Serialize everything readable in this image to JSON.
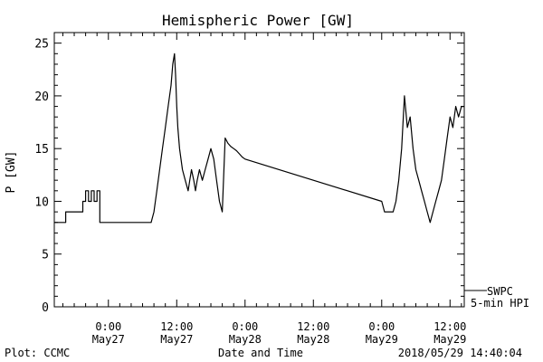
{
  "chart_data": {
    "type": "line",
    "title": "Hemispheric Power [GW]",
    "xlabel": "Date and Time",
    "ylabel": "P [GW]",
    "ylim": [
      0,
      26
    ],
    "xlim_hours": [
      -9.5,
      62.5
    ],
    "yticks": [
      0,
      5,
      10,
      15,
      20,
      25
    ],
    "x_ticks": [
      {
        "hour": 0,
        "time": "0:00",
        "date": "May27"
      },
      {
        "hour": 12,
        "time": "12:00",
        "date": "May27"
      },
      {
        "hour": 24,
        "time": "0:00",
        "date": "May28"
      },
      {
        "hour": 36,
        "time": "12:00",
        "date": "May28"
      },
      {
        "hour": 48,
        "time": "0:00",
        "date": "May29"
      },
      {
        "hour": 60,
        "time": "12:00",
        "date": "May29"
      }
    ],
    "grid": false,
    "legend_position": "bottom-right",
    "series": [
      {
        "name": "",
        "color": "#000000",
        "hours_since_may27_0000": [
          -9.5,
          -7.5,
          -7.5,
          -5,
          -5,
          -4.5,
          -4.5,
          -4,
          -4,
          -3.5,
          -3.5,
          -3,
          -3,
          -2.5,
          -2.5,
          -2,
          -2,
          -1.5,
          -1.5,
          -1.5,
          -1.5,
          1,
          1,
          3,
          3.5,
          4,
          4.5,
          5,
          5.5,
          6,
          6.5,
          7,
          7.5,
          8,
          8.5,
          9,
          9.5,
          10,
          10.5,
          11,
          11.3,
          11.6,
          11.8,
          12,
          12.2,
          12.5,
          13,
          13.5,
          14,
          14.3,
          14.6,
          15,
          15.3,
          15.6,
          16,
          16.5,
          17,
          17.5,
          18,
          18.5,
          19,
          19.5,
          20,
          20.5,
          21,
          21.5,
          22,
          22.5,
          23,
          23.5,
          24,
          48,
          48.5,
          49,
          49.5,
          50,
          50.5,
          51,
          51.5,
          52,
          52.5,
          53,
          53.5,
          54,
          54.5,
          55,
          55.5,
          56,
          56.5,
          57,
          57.5,
          58,
          58.5,
          59,
          59.5,
          60,
          60.5,
          61,
          61.5,
          62,
          62.5
        ],
        "values": [
          8,
          8,
          9,
          9,
          9,
          9,
          10,
          10,
          11,
          11,
          10,
          10,
          11,
          11,
          10,
          10,
          11,
          11,
          10,
          9,
          8,
          8,
          8,
          8,
          8,
          8,
          8,
          8,
          8,
          8,
          8,
          8,
          8,
          9,
          11,
          13,
          15,
          17,
          19,
          21,
          23,
          24,
          22,
          19,
          17,
          15,
          13,
          12,
          11,
          12,
          13,
          12,
          11,
          12,
          13,
          12,
          13,
          14,
          15,
          14,
          12,
          10,
          9,
          16,
          15.5,
          15.2,
          15,
          14.8,
          14.5,
          14.2,
          14,
          10,
          9,
          9,
          9,
          9,
          10,
          12,
          15,
          20,
          17,
          18,
          15,
          13,
          12,
          11,
          10,
          9,
          8,
          9,
          10,
          11,
          12,
          14,
          16,
          18,
          17,
          19,
          18,
          19,
          19
        ]
      }
    ],
    "legend": {
      "source": "SWPC",
      "interval": "5-min HPI"
    },
    "footer": {
      "left": "Plot: CCMC",
      "center": "Date and Time",
      "right": "2018/05/29 14:40:04"
    }
  }
}
